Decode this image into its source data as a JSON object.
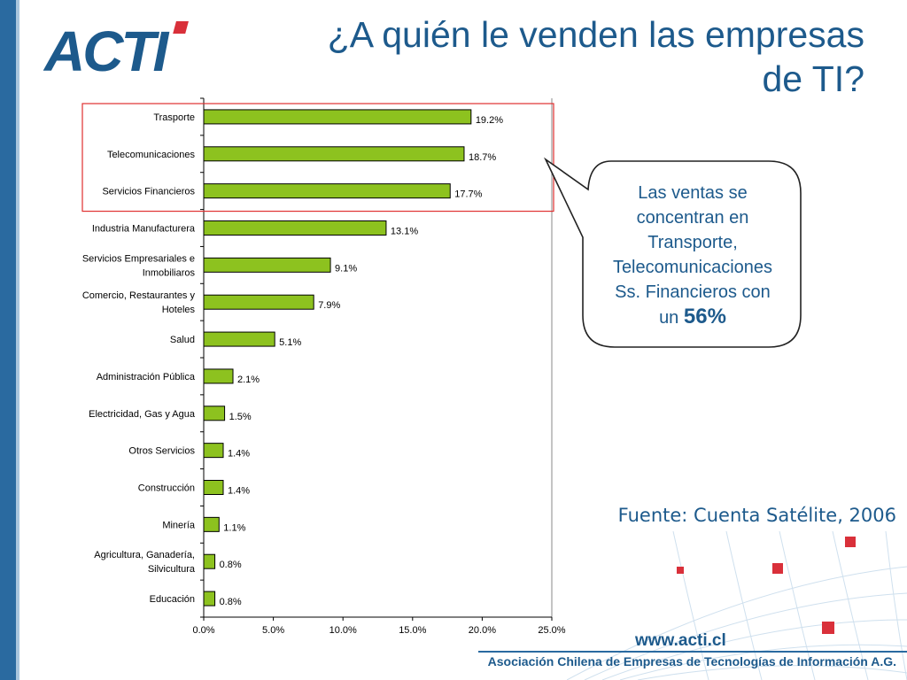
{
  "slide": {
    "logo_text": "ACTI",
    "title_line1": "¿A quién le venden las empresas",
    "title_line2": "de TI?",
    "bubble_line1": "Las ventas se",
    "bubble_line2": "concentran en",
    "bubble_line3": "Transporte,",
    "bubble_line4": "Telecomunicaciones",
    "bubble_line5": "Ss. Financieros con",
    "bubble_prefix": "un",
    "bubble_highlight": "56%",
    "source": "Fuente: Cuenta Satélite, 2006",
    "footer_url": "www.acti.cl",
    "footer_org": "Asociación Chilena de Empresas de Tecnologías de Información A.G.",
    "colors": {
      "brand_blue": "#1d5a8c",
      "bar_green": "#8dc21f",
      "highlight_red": "#e03030",
      "deco_red": "#d9303a"
    }
  },
  "chart_data": {
    "type": "bar",
    "orientation": "horizontal",
    "categories": [
      [
        "Trasporte"
      ],
      [
        "Telecomunicaciones"
      ],
      [
        "Servicios Financieros"
      ],
      [
        "Industria Manufacturera"
      ],
      [
        "Servicios Empresariales e",
        "Inmobiliaros"
      ],
      [
        "Comercio, Restaurantes y",
        "Hoteles"
      ],
      [
        "Salud"
      ],
      [
        "Administración Pública"
      ],
      [
        "Electricidad, Gas y Agua"
      ],
      [
        "Otros Servicios"
      ],
      [
        "Construcción"
      ],
      [
        "Minería"
      ],
      [
        "Agricultura, Ganadería,",
        "Silvicultura"
      ],
      [
        "Educación"
      ]
    ],
    "values": [
      19.2,
      18.7,
      17.7,
      13.1,
      9.1,
      7.9,
      5.1,
      2.1,
      1.5,
      1.4,
      1.4,
      1.1,
      0.8,
      0.8
    ],
    "data_labels": [
      "19.2%",
      "18.7%",
      "17.7%",
      "13.1%",
      "9.1%",
      "7.9%",
      "5.1%",
      "2.1%",
      "1.5%",
      "1.4%",
      "1.4%",
      "1.1%",
      "0.8%",
      "0.8%"
    ],
    "xlim": [
      0,
      25
    ],
    "xticks": [
      "0.0%",
      "5.0%",
      "10.0%",
      "15.0%",
      "20.0%",
      "25.0%"
    ],
    "highlighted_categories": 3,
    "grid": false
  }
}
